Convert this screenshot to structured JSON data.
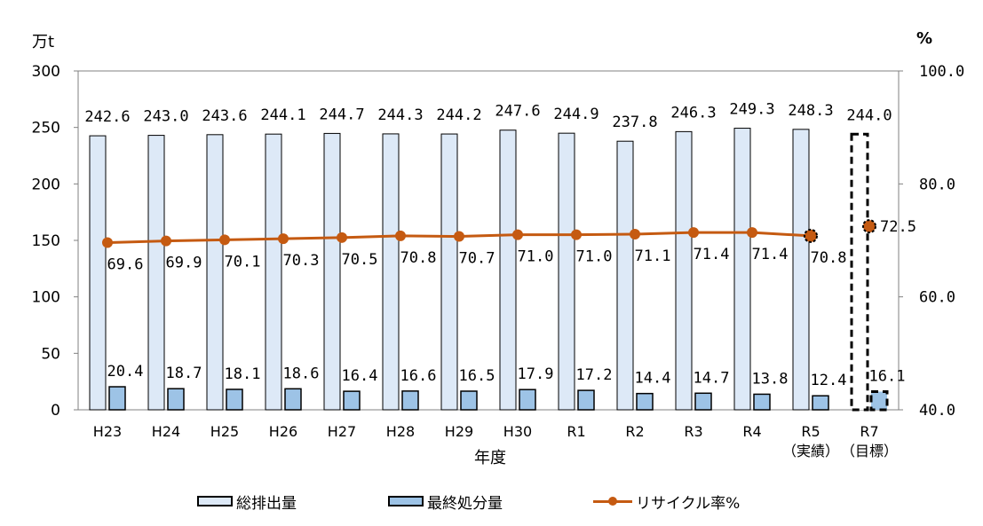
{
  "chart_data": {
    "type": "bar",
    "categories": [
      "H23",
      "H24",
      "H25",
      "H26",
      "H27",
      "H28",
      "H29",
      "H30",
      "R1",
      "R2",
      "R3",
      "R4",
      "R5\n（実績）",
      "R7\n（目標）"
    ],
    "series": [
      {
        "name": "総排出量",
        "type": "bar",
        "axis": "left",
        "color": "#dde9f7",
        "values": [
          242.6,
          243.0,
          243.6,
          244.1,
          244.7,
          244.3,
          244.2,
          247.6,
          244.9,
          237.8,
          246.3,
          249.3,
          248.3,
          244.0
        ]
      },
      {
        "name": "最終処分量",
        "type": "bar",
        "axis": "left",
        "color": "#9dc3e6",
        "values": [
          20.4,
          18.7,
          18.1,
          18.6,
          16.4,
          16.6,
          16.5,
          17.9,
          17.2,
          14.4,
          14.7,
          13.8,
          12.4,
          16.1
        ]
      },
      {
        "name": "リサイクル率%",
        "type": "line",
        "axis": "right",
        "color": "#c55a11",
        "values": [
          69.6,
          69.9,
          70.1,
          70.3,
          70.5,
          70.8,
          70.7,
          71.0,
          71.0,
          71.1,
          71.4,
          71.4,
          70.8,
          72.5
        ]
      }
    ],
    "total_labels": [
      "242.6",
      "243.0",
      "243.6",
      "244.1",
      "244.7",
      "244.3",
      "244.2",
      "247.6",
      "244.9",
      "237.8",
      "246.3",
      "249.3",
      "248.3",
      "244.0"
    ],
    "final_labels": [
      "20.4",
      "18.7",
      "18.1",
      "18.6",
      "16.4",
      "16.6",
      "16.5",
      "17.9",
      "17.2",
      "14.4",
      "14.7",
      "13.8",
      "12.4",
      "16.1"
    ],
    "rate_labels": [
      "69.6",
      "69.9",
      "70.1",
      "70.3",
      "70.5",
      "70.8",
      "70.7",
      "71.0",
      "71.0",
      "71.1",
      "71.4",
      "71.4",
      "70.8",
      "72.5"
    ],
    "xlabel": "年度",
    "ylabel_left": "万t",
    "ylabel_right": "%",
    "ylim_left": [
      0,
      300
    ],
    "yticks_left": [
      "0",
      "50",
      "100",
      "150",
      "200",
      "250",
      "300"
    ],
    "ylim_right": [
      40,
      100
    ],
    "yticks_right": [
      "40.0",
      "60.0",
      "80.0",
      "100.0"
    ],
    "grid": false,
    "legend_position": "bottom",
    "target_category_index": 13,
    "dashed_marker_indices": [
      12,
      13
    ]
  }
}
